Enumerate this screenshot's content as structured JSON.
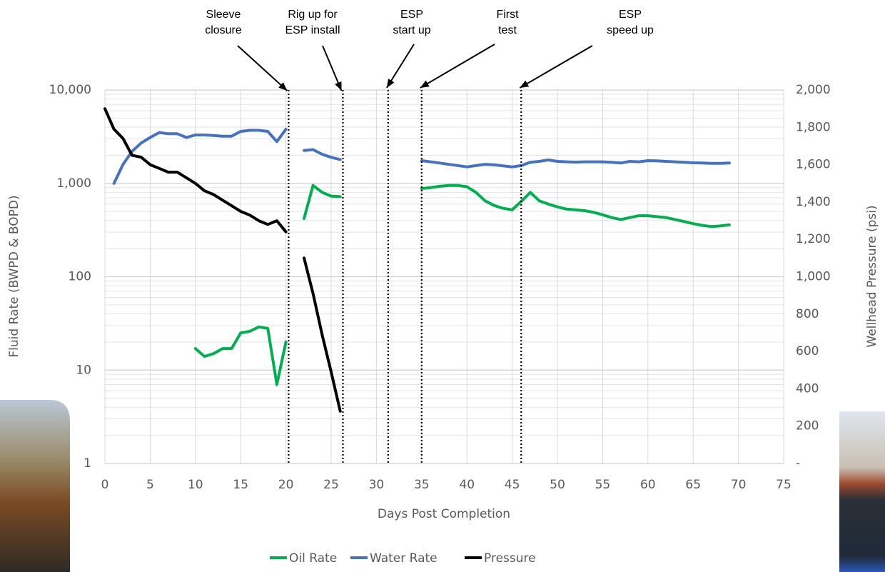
{
  "chart_data": {
    "type": "line",
    "x_label": "Days Post Completion",
    "y_label": "Fluid Rate (BWPD & BOPD)",
    "y2_label": "Wellhead Pressure (psi)",
    "xlim": [
      0,
      75
    ],
    "xticks": [
      0,
      5,
      10,
      15,
      20,
      25,
      30,
      35,
      40,
      45,
      50,
      55,
      60,
      65,
      70,
      75
    ],
    "ylim": [
      1,
      10000
    ],
    "yscale": "log",
    "yticks": [
      1,
      10,
      100,
      {
        "value": 1000,
        "label": "1,000"
      },
      {
        "value": 10000,
        "label": "10,000"
      }
    ],
    "y2lim": [
      0,
      2000
    ],
    "y2ticks": [
      {
        "value": 0,
        "label": "-"
      },
      200,
      400,
      600,
      800,
      {
        "value": 1000,
        "label": "1,000"
      },
      {
        "value": 1200,
        "label": "1,200"
      },
      {
        "value": 1400,
        "label": "1,400"
      },
      {
        "value": 1600,
        "label": "1,600"
      },
      {
        "value": 1800,
        "label": "1,800"
      },
      {
        "value": 2000,
        "label": "2,000"
      }
    ],
    "grid": true,
    "legend": "bottom",
    "x": [
      0,
      1,
      2,
      3,
      4,
      5,
      6,
      7,
      8,
      9,
      10,
      11,
      12,
      13,
      14,
      15,
      16,
      17,
      18,
      19,
      20,
      21,
      22,
      23,
      24,
      25,
      26,
      27,
      28,
      29,
      30,
      31,
      32,
      33,
      34,
      35,
      36,
      37,
      38,
      39,
      40,
      41,
      42,
      43,
      44,
      45,
      46,
      47,
      48,
      49,
      50,
      51,
      52,
      53,
      54,
      55,
      56,
      57,
      58,
      59,
      60,
      61,
      62,
      63,
      64,
      65,
      66,
      67,
      68,
      69
    ],
    "series": [
      {
        "name": "Oil Rate",
        "color": "#00b050",
        "values": [
          null,
          null,
          null,
          null,
          null,
          null,
          null,
          null,
          null,
          null,
          17,
          14,
          15,
          17,
          17,
          25,
          26,
          29,
          28,
          7,
          20,
          null,
          420,
          950,
          800,
          730,
          720,
          null,
          null,
          null,
          null,
          null,
          null,
          null,
          null,
          880,
          900,
          930,
          950,
          950,
          920,
          800,
          650,
          580,
          540,
          520,
          640,
          800,
          650,
          600,
          560,
          530,
          520,
          510,
          490,
          460,
          430,
          410,
          430,
          450,
          450,
          440,
          430,
          410,
          390,
          370,
          355,
          345,
          350,
          360
        ]
      },
      {
        "name": "Water Rate",
        "color": "#4472c4",
        "values": [
          null,
          1000,
          1600,
          2200,
          2700,
          3100,
          3500,
          3400,
          3400,
          3100,
          3300,
          3300,
          3250,
          3200,
          3200,
          3600,
          3700,
          3700,
          3600,
          2800,
          3800,
          null,
          2250,
          2300,
          2050,
          1900,
          1800,
          null,
          null,
          null,
          null,
          null,
          null,
          null,
          null,
          1750,
          1700,
          1650,
          1600,
          1550,
          1500,
          1550,
          1600,
          1580,
          1540,
          1500,
          1550,
          1680,
          1720,
          1780,
          1720,
          1700,
          1690,
          1700,
          1700,
          1700,
          1680,
          1650,
          1720,
          1700,
          1750,
          1740,
          1720,
          1700,
          1680,
          1660,
          1650,
          1640,
          1640,
          1650
        ]
      },
      {
        "name": "Pressure",
        "color": "#000000",
        "axis": "y2",
        "values": [
          1900,
          1790,
          1740,
          1650,
          1640,
          1600,
          1580,
          1560,
          1560,
          1530,
          1500,
          1460,
          1440,
          1410,
          1380,
          1350,
          1330,
          1300,
          1280,
          1300,
          1240,
          null,
          1100,
          910,
          690,
          490,
          280,
          null,
          null,
          null,
          null,
          null,
          null,
          null,
          null,
          null,
          null,
          null,
          null,
          null,
          null,
          null,
          null,
          null,
          null,
          null,
          null,
          null,
          null,
          null,
          null,
          null,
          null,
          null,
          null,
          null,
          null,
          null,
          null,
          null,
          null,
          null,
          null,
          null,
          null,
          null,
          null,
          null,
          null,
          null
        ]
      }
    ],
    "events": [
      {
        "x": 20.3,
        "label": [
          "Sleeve",
          "closure"
        ]
      },
      {
        "x": 26.3,
        "label": [
          "Rig up for",
          "ESP install"
        ]
      },
      {
        "x": 31.3,
        "label": [
          "ESP",
          "start up"
        ]
      },
      {
        "x": 35,
        "label": [
          "First",
          "test"
        ]
      },
      {
        "x": 46,
        "label": [
          "ESP",
          "speed up"
        ]
      }
    ]
  }
}
